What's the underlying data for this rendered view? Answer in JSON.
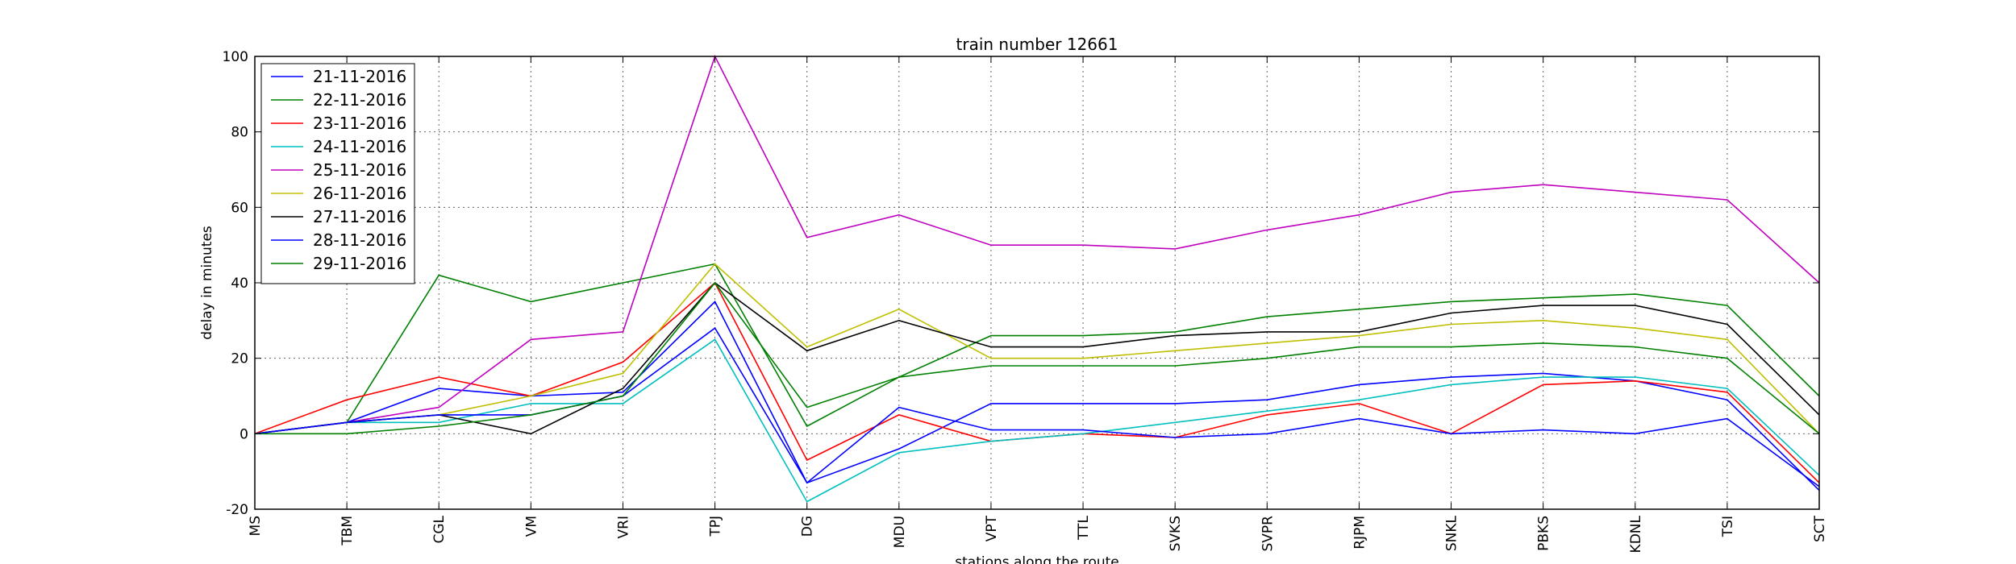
{
  "chart_data": {
    "type": "line",
    "title": "train number 12661",
    "xlabel": "stations along the route",
    "ylabel": "delay in minutes",
    "ylim": [
      -20,
      100
    ],
    "yticks": [
      -20,
      0,
      20,
      40,
      60,
      80,
      100
    ],
    "grid": true,
    "legend_position": "top-left",
    "categories": [
      "MS",
      "TBM",
      "CGL",
      "VM",
      "VRI",
      "TPJ",
      "DG",
      "MDU",
      "VPT",
      "TTL",
      "SVKS",
      "SVPR",
      "RJPM",
      "SNKL",
      "PBKS",
      "KDNL",
      "TSI",
      "SCT"
    ],
    "series": [
      {
        "name": "21-11-2016",
        "color": "#0000ff",
        "values": [
          0,
          3,
          12,
          10,
          11,
          35,
          -13,
          -4,
          8,
          8,
          8,
          9,
          13,
          15,
          16,
          14,
          9,
          -15
        ]
      },
      {
        "name": "22-11-2016",
        "color": "#008000",
        "values": [
          0,
          3,
          42,
          35,
          40,
          45,
          2,
          15,
          26,
          26,
          27,
          31,
          33,
          35,
          36,
          37,
          34,
          10
        ]
      },
      {
        "name": "23-11-2016",
        "color": "#ff0000",
        "values": [
          0,
          9,
          15,
          10,
          19,
          40,
          -7,
          5,
          -2,
          0,
          -1,
          5,
          8,
          0,
          13,
          14,
          11,
          -13
        ]
      },
      {
        "name": "24-11-2016",
        "color": "#00bfbf",
        "values": [
          0,
          3,
          3,
          8,
          8,
          25,
          -18,
          -5,
          -2,
          0,
          3,
          6,
          9,
          13,
          15,
          15,
          12,
          -11
        ]
      },
      {
        "name": "25-11-2016",
        "color": "#bf00bf",
        "values": [
          0,
          3,
          7,
          25,
          27,
          100,
          52,
          58,
          50,
          50,
          49,
          54,
          58,
          64,
          66,
          64,
          62,
          40
        ]
      },
      {
        "name": "26-11-2016",
        "color": "#bfbf00",
        "values": [
          0,
          3,
          5,
          10,
          16,
          45,
          23,
          33,
          20,
          20,
          22,
          24,
          26,
          29,
          30,
          28,
          25,
          0
        ]
      },
      {
        "name": "27-11-2016",
        "color": "#000000",
        "values": [
          0,
          3,
          5,
          0,
          12,
          40,
          22,
          30,
          23,
          23,
          26,
          27,
          27,
          32,
          34,
          34,
          29,
          5
        ]
      },
      {
        "name": "28-11-2016",
        "color": "#0000ff",
        "values": [
          0,
          3,
          5,
          5,
          10,
          28,
          -13,
          7,
          1,
          1,
          -1,
          0,
          4,
          0,
          1,
          0,
          4,
          -14
        ]
      },
      {
        "name": "29-11-2016",
        "color": "#008000",
        "values": [
          0,
          0,
          2,
          5,
          10,
          40,
          7,
          15,
          18,
          18,
          18,
          20,
          23,
          23,
          24,
          23,
          20,
          0
        ]
      }
    ]
  }
}
